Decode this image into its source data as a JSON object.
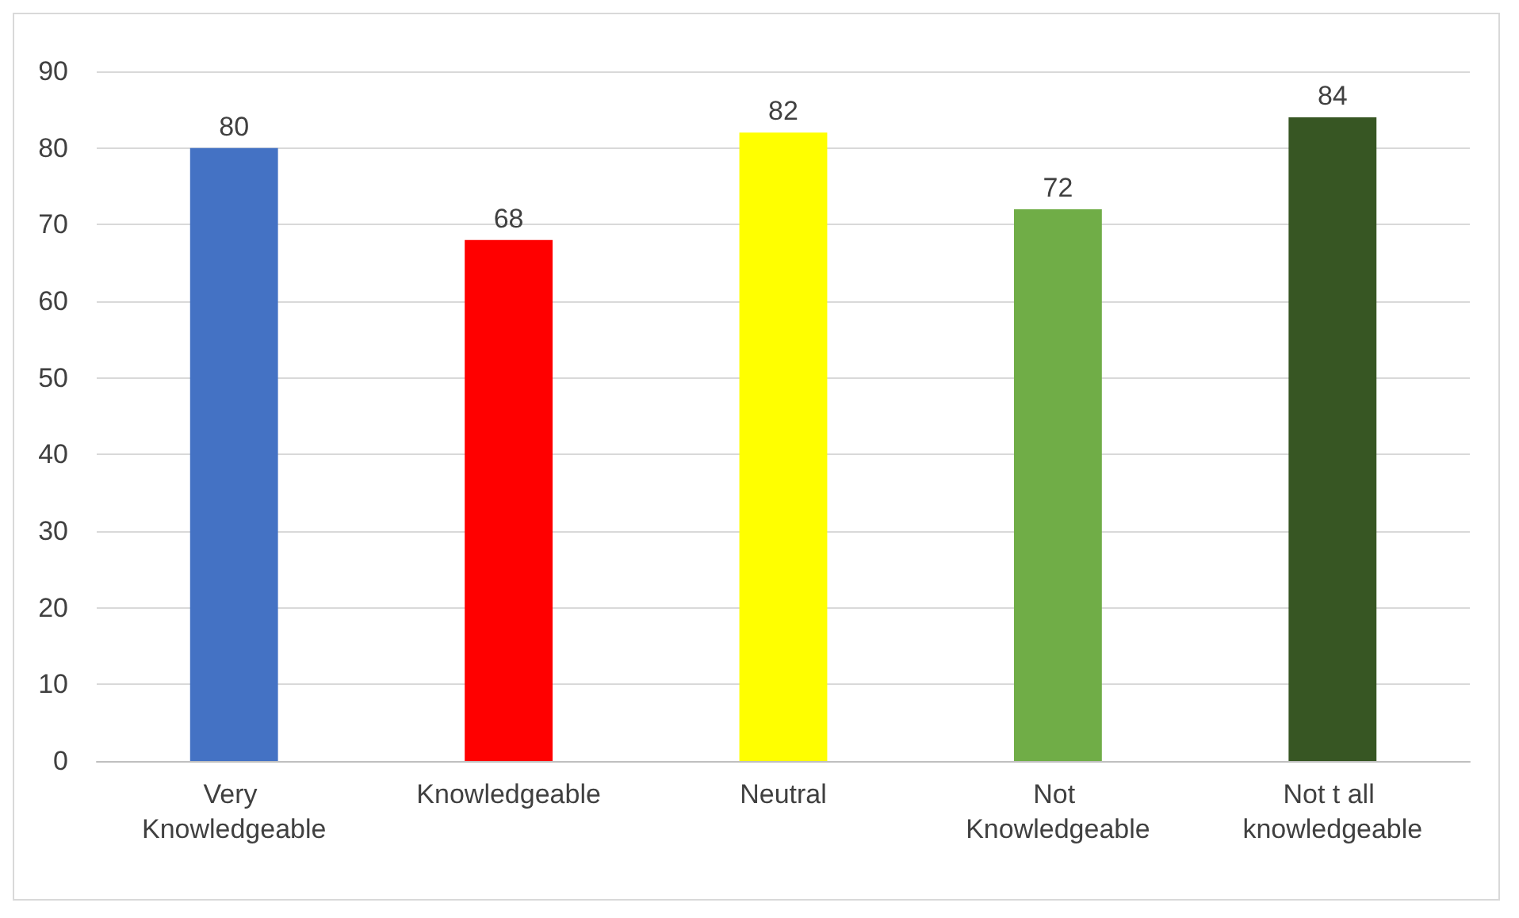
{
  "chart_data": {
    "type": "bar",
    "categories": [
      "Very Knowledgeable",
      "Knowledgeable",
      "Neutral",
      "Not Knowledgeable",
      "Not t all knowledgeable"
    ],
    "values": [
      80,
      68,
      82,
      72,
      84
    ],
    "colors": [
      "#4472c4",
      "#ff0000",
      "#ffff00",
      "#70ad47",
      "#375623"
    ],
    "ylim": [
      0,
      90
    ],
    "yticks": [
      0,
      10,
      20,
      30,
      40,
      50,
      60,
      70,
      80,
      90
    ],
    "grid": "y",
    "data_labels": true
  }
}
